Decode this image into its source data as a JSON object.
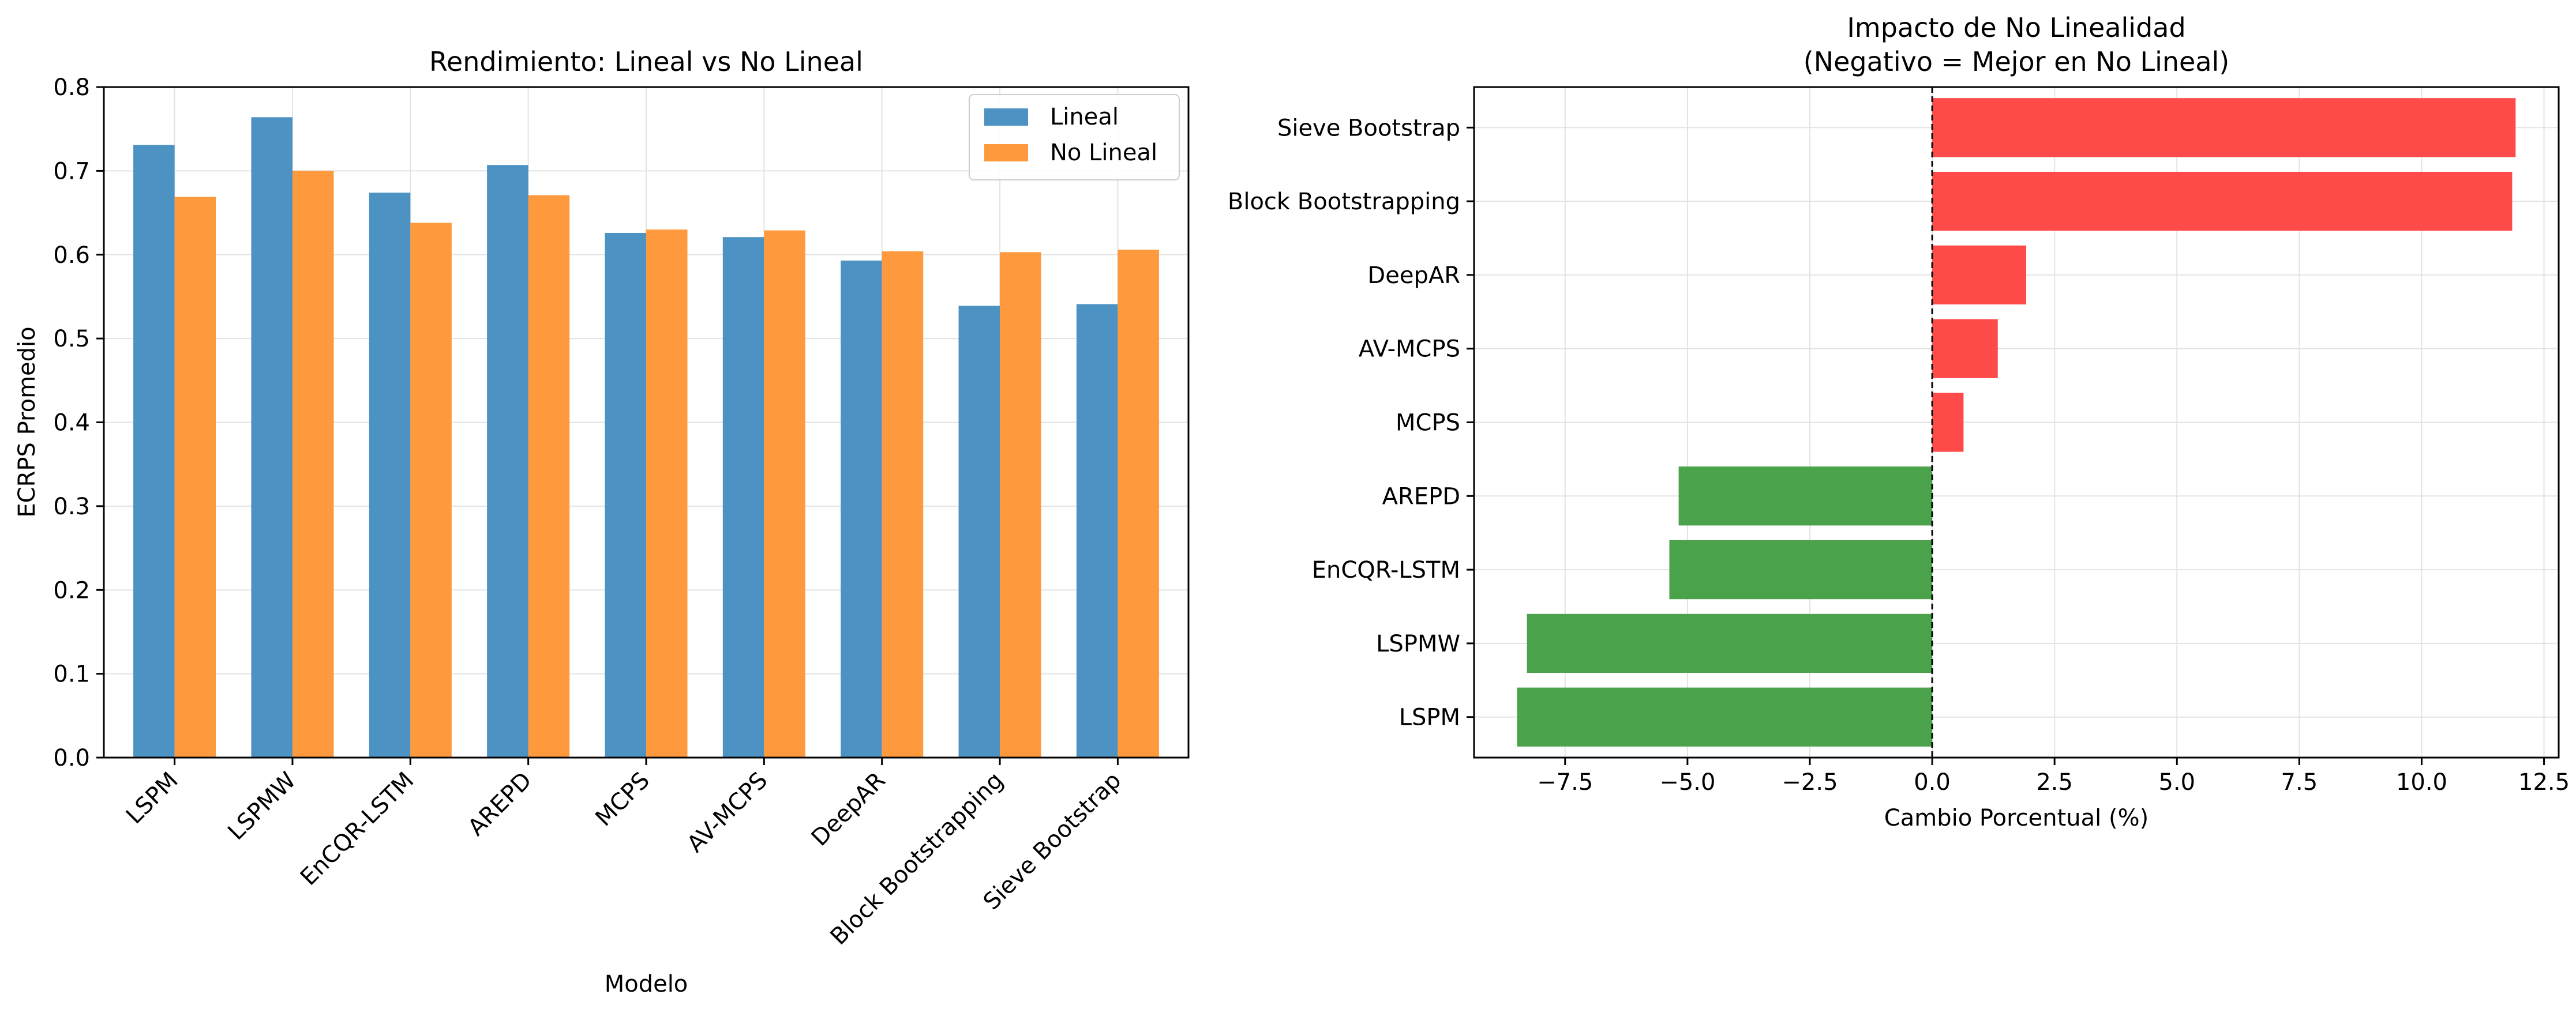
{
  "chart_data": [
    {
      "type": "bar",
      "title": "Rendimiento: Lineal vs No Lineal",
      "xlabel": "Modelo",
      "ylabel": "ECRPS Promedio",
      "categories": [
        "LSPM",
        "LSPMW",
        "EnCQR-LSTM",
        "AREPD",
        "MCPS",
        "AV-MCPS",
        "DeepAR",
        "Block Bootstrapping",
        "Sieve Bootstrap"
      ],
      "series": [
        {
          "name": "Lineal",
          "color": "#4c92c3",
          "values": [
            0.731,
            0.764,
            0.674,
            0.707,
            0.626,
            0.621,
            0.593,
            0.539,
            0.541
          ]
        },
        {
          "name": "No Lineal",
          "color": "#ff993e",
          "values": [
            0.669,
            0.7,
            0.638,
            0.671,
            0.63,
            0.629,
            0.604,
            0.603,
            0.606
          ]
        }
      ],
      "ylim": [
        0,
        0.8
      ],
      "yticks": [
        "0.0",
        "0.1",
        "0.2",
        "0.3",
        "0.4",
        "0.5",
        "0.6",
        "0.7",
        "0.8"
      ],
      "legend": "top-right",
      "grid": true
    },
    {
      "type": "bar",
      "orientation": "horizontal",
      "title": "Impacto de No Linealidad",
      "subtitle": "(Negativo = Mejor en No Lineal)",
      "xlabel": "Cambio Porcentual (%)",
      "ylabel": "",
      "categories": [
        "LSPM",
        "LSPMW",
        "EnCQR-LSTM",
        "AREPD",
        "MCPS",
        "AV-MCPS",
        "DeepAR",
        "Block Bootstrapping",
        "Sieve Bootstrap"
      ],
      "values": [
        -8.48,
        -8.28,
        -5.37,
        -5.18,
        0.64,
        1.34,
        1.92,
        11.85,
        11.92
      ],
      "positive_color": "#ff4a4a",
      "negative_color": "#4aa24a",
      "xlim": [
        -9.36,
        12.8
      ],
      "xticks": [
        "−7.5",
        "−5.0",
        "−2.5",
        "0.0",
        "2.5",
        "5.0",
        "7.5",
        "10.0",
        "12.5"
      ],
      "reference_line": 0,
      "grid": true
    }
  ]
}
